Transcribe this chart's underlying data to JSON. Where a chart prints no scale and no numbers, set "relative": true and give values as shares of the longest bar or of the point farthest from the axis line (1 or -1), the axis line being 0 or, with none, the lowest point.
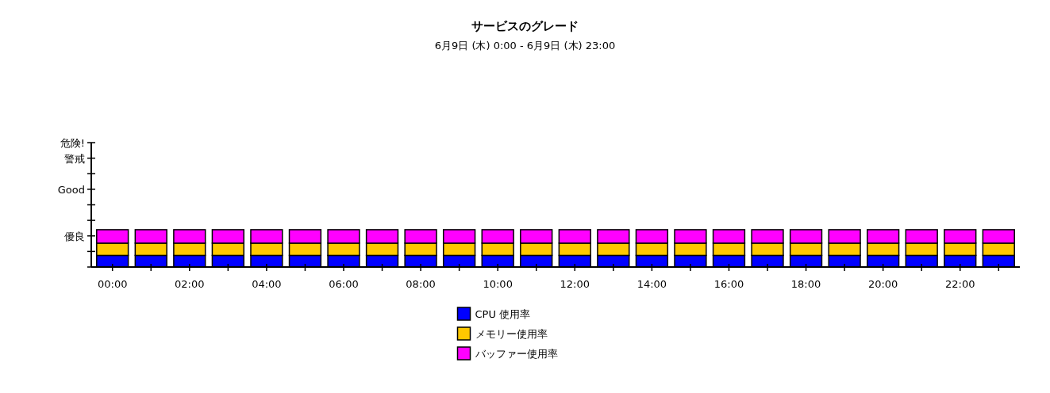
{
  "chart_data": {
    "type": "bar",
    "title": "サービスのグレード",
    "subtitle": "6月9日 (木) 0:00 - 6月9日 (木) 23:00",
    "x": [
      0,
      1,
      2,
      3,
      4,
      5,
      6,
      7,
      8,
      9,
      10,
      11,
      12,
      13,
      14,
      15,
      16,
      17,
      18,
      19,
      20,
      21,
      22,
      23
    ],
    "stacked": true,
    "relative": true,
    "series": [
      {
        "name": "CPU 使用率",
        "color": "#0000ff",
        "values": [
          0.31,
          0.31,
          0.31,
          0.31,
          0.31,
          0.31,
          0.31,
          0.31,
          0.31,
          0.31,
          0.31,
          0.31,
          0.31,
          0.31,
          0.31,
          0.31,
          0.31,
          0.31,
          0.31,
          0.31,
          0.31,
          0.31,
          0.31,
          0.31
        ]
      },
      {
        "name": "メモリー使用率",
        "color": "#ffc800",
        "values": [
          0.33,
          0.33,
          0.33,
          0.33,
          0.33,
          0.33,
          0.33,
          0.33,
          0.33,
          0.33,
          0.33,
          0.33,
          0.33,
          0.33,
          0.33,
          0.33,
          0.33,
          0.33,
          0.33,
          0.33,
          0.33,
          0.33,
          0.33,
          0.33
        ]
      },
      {
        "name": "バッファー使用率",
        "color": "#ff00ff",
        "values": [
          0.36,
          0.36,
          0.36,
          0.36,
          0.36,
          0.36,
          0.36,
          0.36,
          0.36,
          0.36,
          0.36,
          0.36,
          0.36,
          0.36,
          0.36,
          0.36,
          0.36,
          0.36,
          0.36,
          0.36,
          0.36,
          0.36,
          0.36,
          0.36
        ]
      }
    ],
    "xlim": [
      -0.55,
      23.55
    ],
    "xticks": [
      {
        "value": 0,
        "label": "00:00"
      },
      {
        "value": 1,
        "label": null
      },
      {
        "value": 2,
        "label": "02:00"
      },
      {
        "value": 3,
        "label": null
      },
      {
        "value": 4,
        "label": "04:00"
      },
      {
        "value": 5,
        "label": null
      },
      {
        "value": 6,
        "label": "06:00"
      },
      {
        "value": 7,
        "label": null
      },
      {
        "value": 8,
        "label": "08:00"
      },
      {
        "value": 9,
        "label": null
      },
      {
        "value": 10,
        "label": "10:00"
      },
      {
        "value": 11,
        "label": null
      },
      {
        "value": 12,
        "label": "12:00"
      },
      {
        "value": 13,
        "label": null
      },
      {
        "value": 14,
        "label": "14:00"
      },
      {
        "value": 15,
        "label": null
      },
      {
        "value": 16,
        "label": "16:00"
      },
      {
        "value": 17,
        "label": null
      },
      {
        "value": 18,
        "label": "18:00"
      },
      {
        "value": 19,
        "label": null
      },
      {
        "value": 20,
        "label": "20:00"
      },
      {
        "value": 21,
        "label": null
      },
      {
        "value": 22,
        "label": "22:00"
      },
      {
        "value": 23,
        "label": null
      }
    ],
    "annotations": [
      "優良",
      "Good",
      "警戒",
      "危険!"
    ],
    "grid": false,
    "legend": "bottom"
  }
}
